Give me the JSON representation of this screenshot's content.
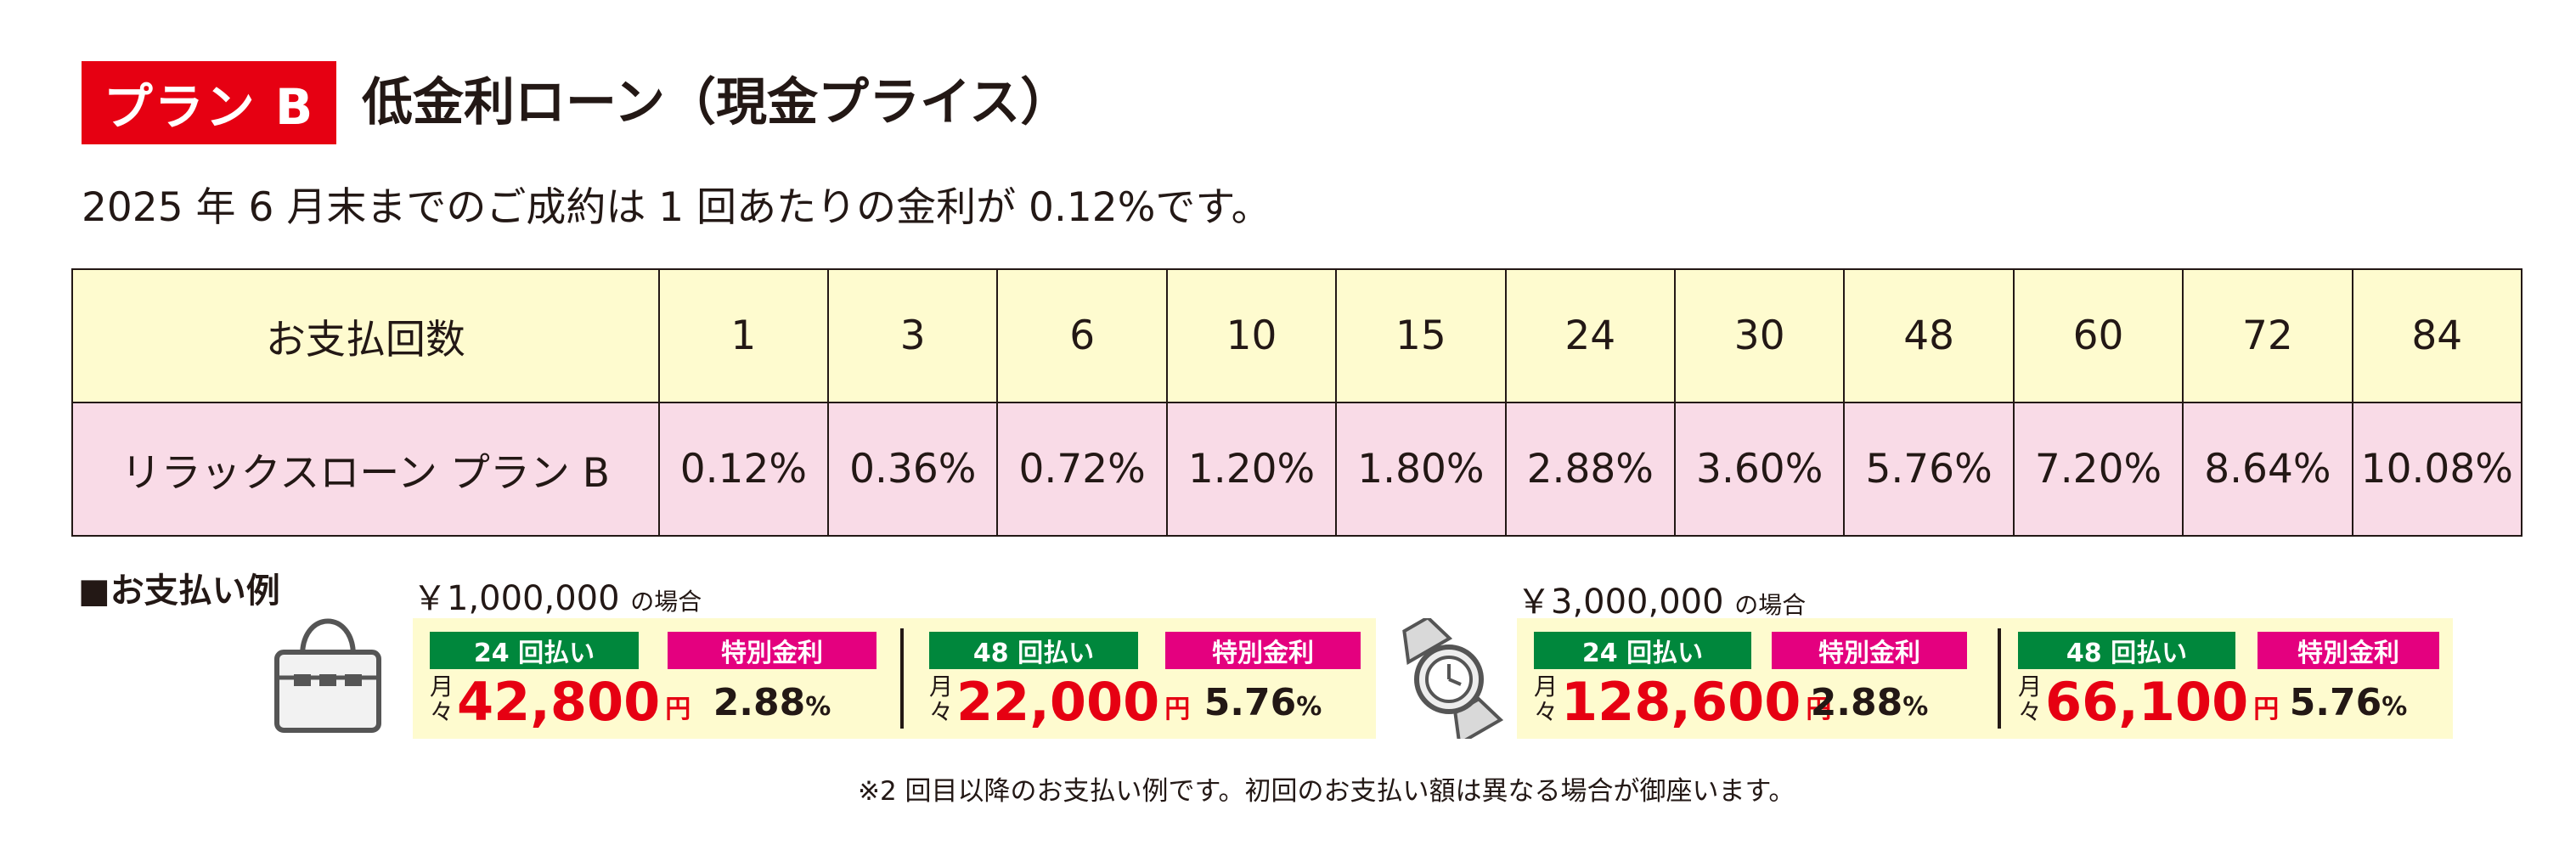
{
  "header": {
    "badge": "プラン B",
    "title": "低金利ローン（現金プライス）",
    "intro": "2025 年 6 月末までのご成約は 1 回あたりの金利が 0.12%です。"
  },
  "table": {
    "row1": {
      "label": "お支払回数",
      "values": [
        "1",
        "3",
        "6",
        "10",
        "15",
        "24",
        "30",
        "48",
        "60",
        "72",
        "84"
      ]
    },
    "row2": {
      "label": "リラックスローン プラン B",
      "values": [
        "0.12%",
        "0.36%",
        "0.72%",
        "1.20%",
        "1.80%",
        "2.88%",
        "3.60%",
        "5.76%",
        "7.20%",
        "8.64%",
        "10.08%"
      ]
    }
  },
  "examples": {
    "label": "■お支払い例",
    "monthly_mark_top": "月",
    "monthly_mark_bottom": "々",
    "yen_unit": "円",
    "pct_unit": "%",
    "special_rate_label": "特別金利",
    "items": [
      {
        "icon": "handbag-icon",
        "amount": "￥1,000,000",
        "amount_suffix": "の場合",
        "plans": [
          {
            "count_label": "24 回払い",
            "monthly": "42,800",
            "rate": "2.88"
          },
          {
            "count_label": "48 回払い",
            "monthly": "22,000",
            "rate": "5.76"
          }
        ]
      },
      {
        "icon": "wristwatch-icon",
        "amount": "￥3,000,000",
        "amount_suffix": "の場合",
        "plans": [
          {
            "count_label": "24 回払い",
            "monthly": "128,600",
            "rate": "2.88"
          },
          {
            "count_label": "48 回払い",
            "monthly": "66,100",
            "rate": "5.76"
          }
        ]
      }
    ]
  },
  "footnote": "※2 回目以降のお支払い例です。初回のお支払い額は異なる場合が御座います。",
  "colors": {
    "red": "#e60012",
    "green": "#00873c",
    "pink": "#e4007f",
    "cream": "#fefbcf",
    "lightpink": "#f9dbe7"
  }
}
